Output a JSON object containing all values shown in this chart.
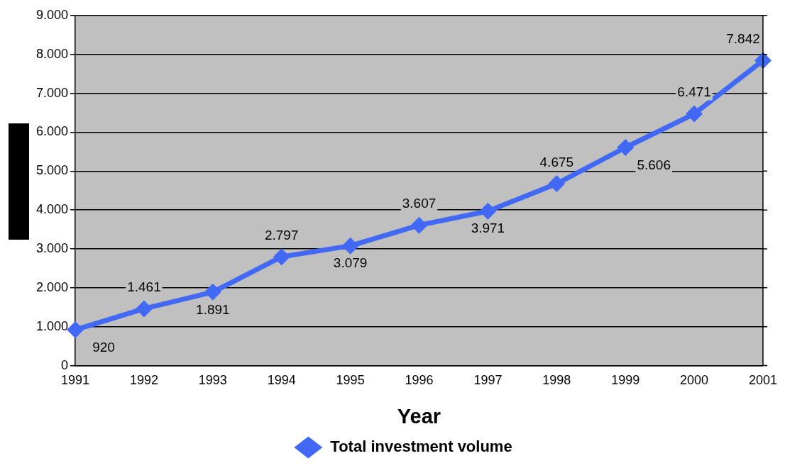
{
  "chart_data": {
    "type": "line",
    "xlabel": "Year",
    "categories": [
      "1991",
      "1992",
      "1993",
      "1994",
      "1995",
      "1996",
      "1997",
      "1998",
      "1999",
      "2000",
      "2001"
    ],
    "series": [
      {
        "name": "Total investment volume",
        "color": "#4169f5",
        "values": [
          920,
          1461,
          1891,
          2797,
          3079,
          3607,
          3971,
          4675,
          5606,
          6471,
          7842
        ],
        "value_labels": [
          "920",
          "1.461",
          "1.891",
          "2.797",
          "3.079",
          "3.607",
          "3.971",
          "4.675",
          "5.606",
          "6.471",
          "7.842"
        ]
      }
    ],
    "ylim": [
      0,
      9000
    ],
    "yticks": [
      {
        "value": 0,
        "label": "0"
      },
      {
        "value": 1000,
        "label": "1.000"
      },
      {
        "value": 2000,
        "label": "2.000"
      },
      {
        "value": 3000,
        "label": "3.000"
      },
      {
        "value": 4000,
        "label": "4.000"
      },
      {
        "value": 5000,
        "label": "5.000"
      },
      {
        "value": 6000,
        "label": "6.000"
      },
      {
        "value": 7000,
        "label": "7.000"
      },
      {
        "value": 8000,
        "label": "8.000"
      },
      {
        "value": 9000,
        "label": "9.000"
      }
    ],
    "grid": "y",
    "legend": "bottom",
    "marker": "diamond",
    "line_style": "solid"
  }
}
